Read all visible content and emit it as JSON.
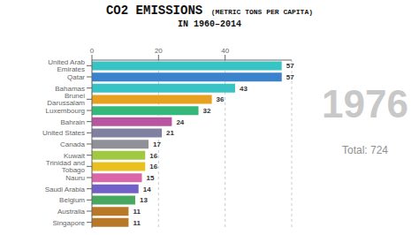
{
  "chart_data": {
    "type": "bar",
    "orientation": "horizontal",
    "title": "CO2 EMISSIONS",
    "subtitle": "(METRIC TONS PER CAPITA)",
    "annotations": [
      "IN 1960–2014",
      "1976",
      "Total: 724"
    ],
    "categories": [
      "United Arab Emirates",
      "Qatar",
      "Bahamas",
      "Brunei Darussalam",
      "Luxembourg",
      "Bahrain",
      "United States",
      "Canada",
      "Kuwait",
      "Trinidad and Tobago",
      "Nauru",
      "Saudi Arabia",
      "Belgium",
      "Australia",
      "Singapore"
    ],
    "values": [
      57,
      57,
      43,
      36,
      32,
      24,
      21,
      17,
      16,
      16,
      15,
      14,
      13,
      11,
      11
    ],
    "colors": [
      "#38c4c4",
      "#3a82cc",
      "#38c4c4",
      "#e8a020",
      "#36b87a",
      "#b855a0",
      "#8080a0",
      "#909098",
      "#a0c840",
      "#e8c020",
      "#d868a8",
      "#7060c8",
      "#48a860",
      "#b87828",
      "#b87828"
    ],
    "xlim": [
      0,
      60
    ],
    "xticks": [
      0,
      20,
      40
    ],
    "grid": true,
    "data_labels": true
  }
}
